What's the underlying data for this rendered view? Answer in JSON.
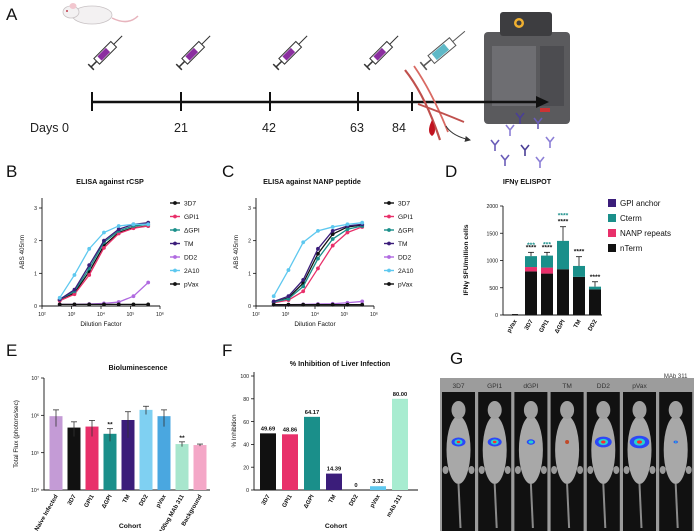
{
  "panel_letters": {
    "a": "A",
    "b": "B",
    "c": "C",
    "d": "D",
    "e": "E",
    "f": "F",
    "g": "G"
  },
  "timeline": {
    "days": [
      "Days 0",
      "21",
      "42",
      "63",
      "84"
    ]
  },
  "panel_b": {
    "title": "ELISA against rCSP",
    "ylabel": "ABS 405nm",
    "xlabel": "Dilution Factor",
    "yticks": [
      "0",
      "1",
      "2",
      "3"
    ],
    "xticks": [
      "10²",
      "10³",
      "10⁴",
      "10⁵",
      "10⁶"
    ]
  },
  "panel_c": {
    "title": "ELISA against NANP peptide",
    "ylabel": "ABS 405nm",
    "xlabel": "Dilution Factor",
    "yticks": [
      "0",
      "1",
      "2",
      "3"
    ],
    "xticks": [
      "10²",
      "10³",
      "10⁴",
      "10⁵",
      "10⁶"
    ]
  },
  "elisa_legend": [
    {
      "label": "3D7",
      "color": "#111111"
    },
    {
      "label": "GPI1",
      "color": "#e8306a"
    },
    {
      "label": "ΔGPI",
      "color": "#1a8f8a"
    },
    {
      "label": "TM",
      "color": "#3b1d7a"
    },
    {
      "label": "DD2",
      "color": "#b06ae0"
    },
    {
      "label": "2A10",
      "color": "#5ec8ef"
    },
    {
      "label": "pVax",
      "color": "#111111"
    }
  ],
  "panel_d": {
    "title": "IFNγ ELISPOT",
    "ylabel": "IFNγ SFU/million cells",
    "yticks": [
      "0",
      "500",
      "1000",
      "1500",
      "2000"
    ],
    "legend": [
      {
        "label": "GPI anchor",
        "color": "#3b1d7a"
      },
      {
        "label": "Cterm",
        "color": "#1a8f8a"
      },
      {
        "label": "NANP repeats",
        "color": "#e8306a"
      },
      {
        "label": "nTerm",
        "color": "#111111"
      }
    ],
    "sig_black": "****",
    "sig_teal_3d7": "***",
    "sig_teal_gpi": "****"
  },
  "panel_e": {
    "title": "Bioluminescence",
    "ylabel": "Total Flux (photons/sec)",
    "xlabel": "Cohort",
    "yticks": [
      "10⁴",
      "10⁵",
      "10⁶",
      "10⁷"
    ],
    "sig": "**"
  },
  "panel_f": {
    "title": "% Inhibition of Liver Infection",
    "ylabel": "% Inhibition",
    "xlabel": "Cohort",
    "yticks": [
      "0",
      "20",
      "40",
      "60",
      "80",
      "100"
    ]
  },
  "panel_g": {
    "labels": [
      "3D7",
      "GPI1",
      "dGPI",
      "TM",
      "DD2",
      "pVax",
      "MAb 311"
    ]
  },
  "chart_data": [
    {
      "type": "line",
      "title": "ELISA against rCSP",
      "xlabel": "Dilution Factor",
      "ylabel": "ABS 405nm",
      "x": [
        2.6,
        3.1,
        3.6,
        4.1,
        4.6,
        5.1,
        5.6
      ],
      "xscale": "log10",
      "ylim": [
        0,
        3
      ],
      "series": [
        {
          "name": "3D7",
          "values": [
            0.18,
            0.4,
            1.05,
            1.85,
            2.25,
            2.4,
            2.45
          ]
        },
        {
          "name": "GPI1",
          "values": [
            0.16,
            0.36,
            0.95,
            1.78,
            2.22,
            2.38,
            2.45
          ]
        },
        {
          "name": "ΔGPI",
          "values": [
            0.2,
            0.45,
            1.15,
            1.95,
            2.3,
            2.45,
            2.5
          ]
        },
        {
          "name": "TM",
          "values": [
            0.2,
            0.5,
            1.25,
            2.0,
            2.35,
            2.5,
            2.55
          ]
        },
        {
          "name": "DD2",
          "values": [
            0.05,
            0.05,
            0.06,
            0.08,
            0.12,
            0.3,
            0.72
          ]
        },
        {
          "name": "2A10",
          "values": [
            0.25,
            0.95,
            1.75,
            2.25,
            2.45,
            2.5,
            2.5
          ]
        },
        {
          "name": "pVax",
          "values": [
            0.05,
            0.05,
            0.05,
            0.05,
            0.05,
            0.05,
            0.05
          ]
        }
      ]
    },
    {
      "type": "line",
      "title": "ELISA against NANP peptide",
      "xlabel": "Dilution Factor",
      "ylabel": "ABS 405nm",
      "x": [
        2.6,
        3.1,
        3.6,
        4.1,
        4.6,
        5.1,
        5.6
      ],
      "xscale": "log10",
      "ylim": [
        0,
        3
      ],
      "series": [
        {
          "name": "3D7",
          "values": [
            0.12,
            0.25,
            0.7,
            1.6,
            2.2,
            2.42,
            2.48
          ]
        },
        {
          "name": "GPI1",
          "values": [
            0.1,
            0.18,
            0.45,
            1.15,
            1.85,
            2.25,
            2.42
          ]
        },
        {
          "name": "ΔGPI",
          "values": [
            0.12,
            0.22,
            0.6,
            1.45,
            2.05,
            2.35,
            2.45
          ]
        },
        {
          "name": "TM",
          "values": [
            0.14,
            0.3,
            0.8,
            1.75,
            2.3,
            2.45,
            2.5
          ]
        },
        {
          "name": "DD2",
          "values": [
            0.04,
            0.04,
            0.05,
            0.06,
            0.07,
            0.1,
            0.14
          ]
        },
        {
          "name": "2A10",
          "values": [
            0.3,
            1.1,
            1.95,
            2.3,
            2.42,
            2.5,
            2.55
          ]
        },
        {
          "name": "pVax",
          "values": [
            0.04,
            0.04,
            0.04,
            0.04,
            0.04,
            0.04,
            0.04
          ]
        }
      ]
    },
    {
      "type": "bar",
      "title": "IFNγ ELISPOT",
      "ylabel": "IFNγ SFU/million cells",
      "ylim": [
        0,
        2000
      ],
      "categories": [
        "pVax",
        "3D7",
        "GPI1",
        "ΔGPI",
        "TM",
        "DD2"
      ],
      "series": [
        {
          "name": "nTerm",
          "values": [
            5,
            800,
            760,
            840,
            700,
            470
          ]
        },
        {
          "name": "NANP repeats",
          "values": [
            0,
            80,
            110,
            0,
            0,
            0
          ]
        },
        {
          "name": "Cterm",
          "values": [
            0,
            200,
            220,
            520,
            200,
            50
          ]
        },
        {
          "name": "GPI anchor",
          "values": [
            0,
            0,
            0,
            0,
            0,
            0
          ]
        }
      ],
      "errors": [
        5,
        70,
        60,
        260,
        170,
        90
      ]
    },
    {
      "type": "bar",
      "title": "Bioluminescence",
      "ylabel": "Total Flux (photons/sec)",
      "xlabel": "Cohort",
      "yscale": "log10",
      "ylim": [
        10000,
        10000000
      ],
      "categories": [
        "Naive Infected",
        "3D7",
        "GPI1",
        "ΔGPI",
        "TM",
        "DD2",
        "pVax",
        "100ug MAb 311",
        "Background"
      ],
      "values": [
        950000,
        470000,
        500000,
        320000,
        750000,
        1400000,
        950000,
        170000,
        160000
      ],
      "errors": [
        450000,
        200000,
        230000,
        120000,
        500000,
        350000,
        450000,
        25000,
        10000
      ]
    },
    {
      "type": "bar",
      "title": "% Inhibition of Liver Infection",
      "ylabel": "% Inhibition",
      "xlabel": "Cohort",
      "ylim": [
        0,
        100
      ],
      "categories": [
        "3D7",
        "GPI1",
        "ΔGPI",
        "TM",
        "DD2",
        "pVax",
        "mAb 311"
      ],
      "values": [
        49.69,
        48.86,
        64.17,
        14.39,
        0,
        3.32,
        80.0
      ],
      "value_labels": [
        "49.69",
        "48.86",
        "64.17",
        "14.39",
        "0",
        "3.32",
        "80.00"
      ]
    }
  ]
}
